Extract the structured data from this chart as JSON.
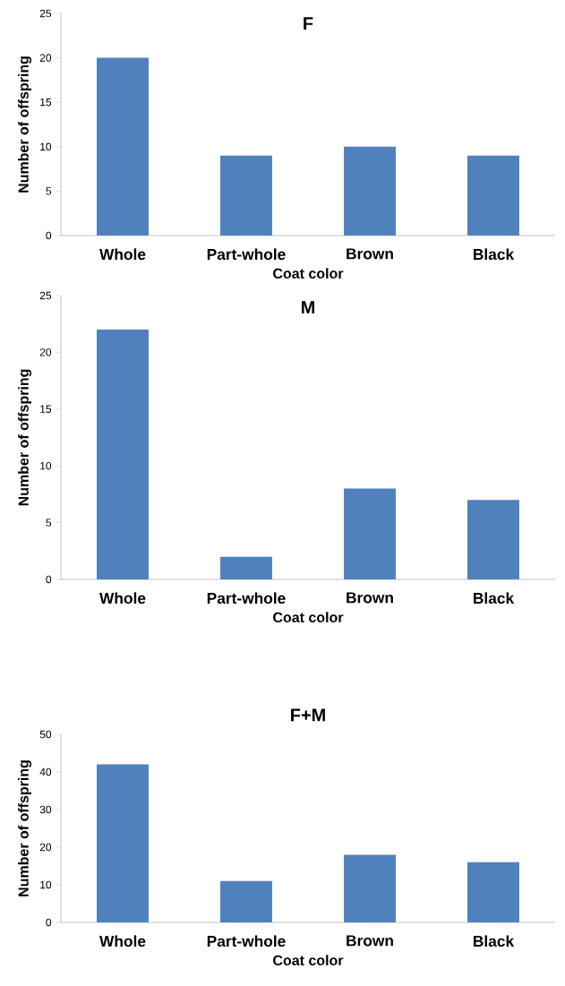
{
  "chart_data": [
    {
      "type": "bar",
      "title": "F",
      "xlabel": "Coat color",
      "ylabel": "Number of  offspring",
      "categories": [
        "Whole",
        "Part-whole",
        "Brown",
        "Black"
      ],
      "values": [
        20,
        9,
        10,
        9
      ],
      "color": "#4f81bd",
      "ylim": [
        0,
        25
      ],
      "yticks": [
        0,
        5,
        10,
        15,
        20,
        25
      ]
    },
    {
      "type": "bar",
      "title": "M",
      "xlabel": "Coat color",
      "ylabel": "Number of  offspring",
      "categories": [
        "Whole",
        "Part-whole",
        "Brown",
        "Black"
      ],
      "values": [
        22,
        2,
        8,
        7
      ],
      "color": "#4f81bd",
      "ylim": [
        0,
        25
      ],
      "yticks": [
        0,
        5,
        10,
        15,
        20,
        25
      ]
    },
    {
      "type": "bar",
      "title": "F+M",
      "xlabel": "Coat color",
      "ylabel": "Number of  offspring",
      "categories": [
        "Whole",
        "Part-whole",
        "Brown",
        "Black"
      ],
      "values": [
        42,
        11,
        18,
        16
      ],
      "color": "#4f81bd",
      "ylim": [
        0,
        50
      ],
      "yticks": [
        0,
        10,
        20,
        30,
        40,
        50
      ]
    }
  ]
}
